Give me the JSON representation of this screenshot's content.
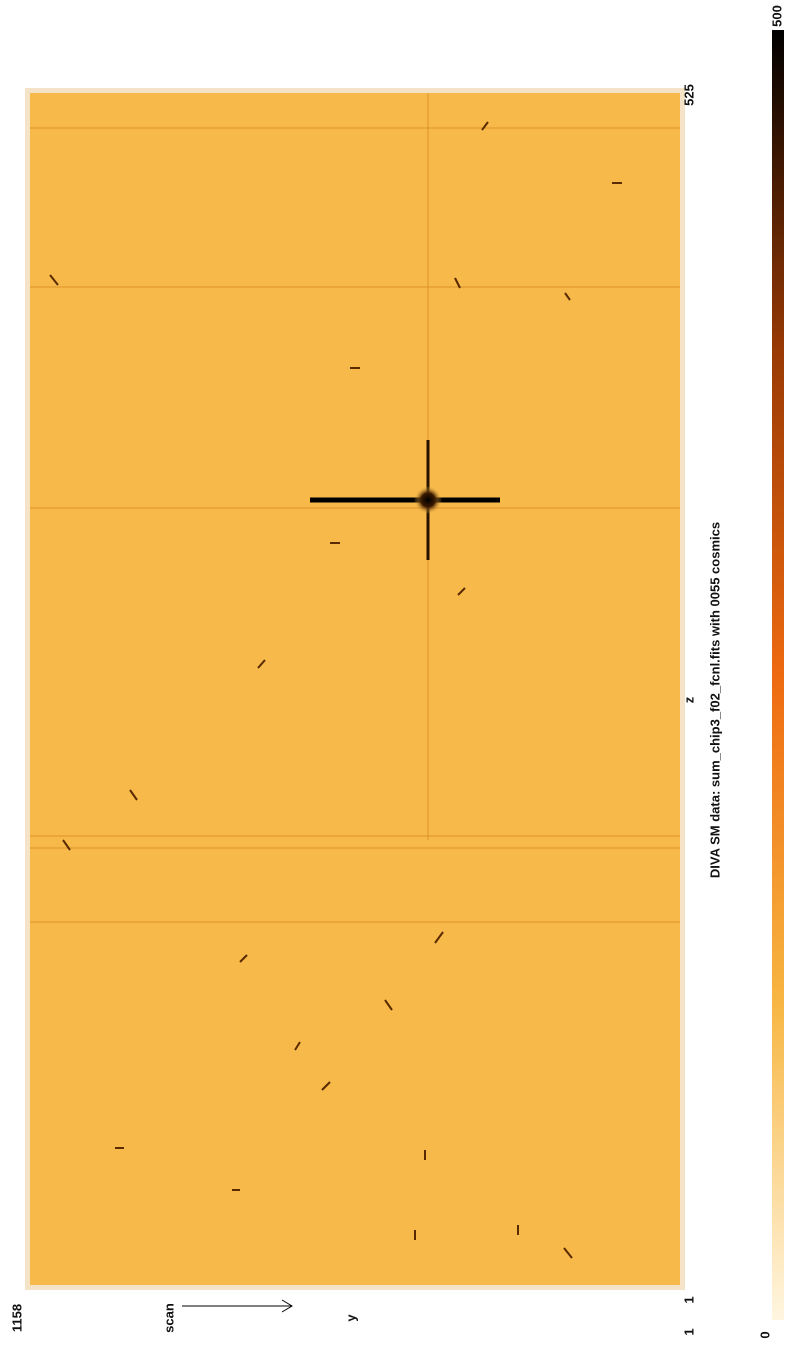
{
  "title": "DIVA SM data: sum_chip3_f02_fcnl.fits with 0055 cosmics",
  "y_axis": {
    "label": "y",
    "start": "1158",
    "end": "1"
  },
  "z_axis": {
    "label": "z",
    "start": "1",
    "end": "525"
  },
  "scan_label": "scan",
  "colorbar": {
    "min": "0",
    "max": "500"
  }
}
